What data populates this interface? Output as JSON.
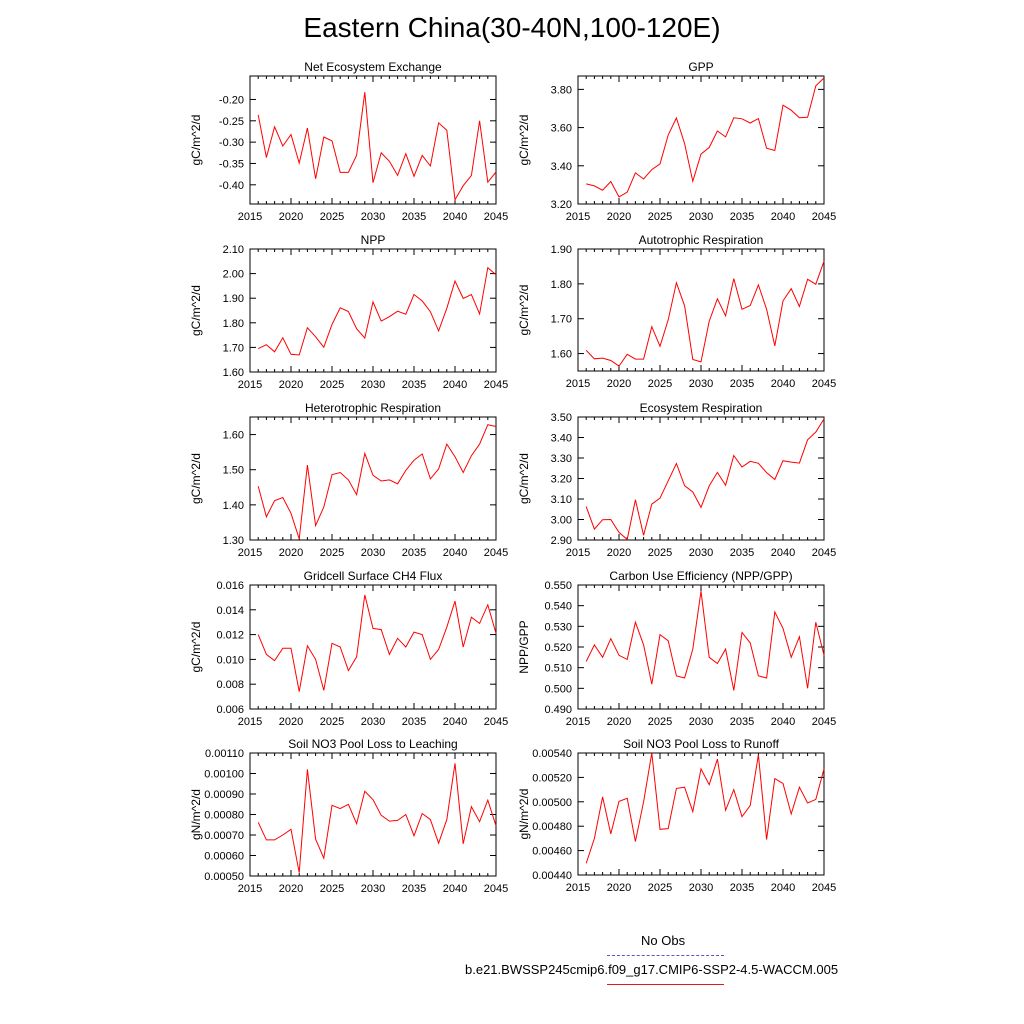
{
  "title": "Eastern China(30-40N,100-120E)",
  "legend": {
    "obs_label": "No Obs",
    "obs_color": "#5555cc",
    "model_label": "b.e21.BWSSP245cmip6.f09_g17.CMIP6-SSP2-4.5-WACCM.005",
    "model_color": "#e31a1c"
  },
  "line_color": "#ff0000",
  "chart_data": [
    {
      "type": "line",
      "title": "Net Ecosystem Exchange",
      "ylabel": "gC/m^2/d",
      "xlim": [
        2015,
        2045
      ],
      "ylim": [
        -0.445,
        -0.145
      ],
      "xticks": [
        2015,
        2020,
        2025,
        2030,
        2035,
        2040,
        2045
      ],
      "yticks": [
        -0.2,
        -0.25,
        -0.3,
        -0.35,
        -0.4
      ],
      "ytick_labels": [
        "-0.20",
        "-0.25",
        "-0.30",
        "-0.35",
        "-0.40"
      ],
      "x": [
        2016,
        2017,
        2018,
        2019,
        2020,
        2021,
        2022,
        2023,
        2024,
        2025,
        2026,
        2027,
        2028,
        2029,
        2030,
        2031,
        2032,
        2033,
        2034,
        2035,
        2036,
        2037,
        2038,
        2039,
        2040,
        2041,
        2042,
        2043,
        2044,
        2045
      ],
      "values": [
        -0.236,
        -0.336,
        -0.264,
        -0.309,
        -0.282,
        -0.349,
        -0.267,
        -0.386,
        -0.288,
        -0.297,
        -0.371,
        -0.371,
        -0.331,
        -0.183,
        -0.395,
        -0.325,
        -0.345,
        -0.378,
        -0.327,
        -0.38,
        -0.331,
        -0.356,
        -0.255,
        -0.272,
        -0.435,
        -0.402,
        -0.378,
        -0.25,
        -0.394,
        -0.37
      ]
    },
    {
      "type": "line",
      "title": "GPP",
      "ylabel": "gC/m^2/d",
      "xlim": [
        2015,
        2045
      ],
      "ylim": [
        3.2,
        3.87
      ],
      "xticks": [
        2015,
        2020,
        2025,
        2030,
        2035,
        2040,
        2045
      ],
      "yticks": [
        3.2,
        3.4,
        3.6,
        3.8
      ],
      "ytick_labels": [
        "3.20",
        "3.40",
        "3.60",
        "3.80"
      ],
      "x": [
        2016,
        2017,
        2018,
        2019,
        2020,
        2021,
        2022,
        2023,
        2024,
        2025,
        2026,
        2027,
        2028,
        2029,
        2030,
        2031,
        2032,
        2033,
        2034,
        2035,
        2036,
        2037,
        2038,
        2039,
        2040,
        2041,
        2042,
        2043,
        2044,
        2045
      ],
      "values": [
        3.305,
        3.295,
        3.272,
        3.318,
        3.237,
        3.262,
        3.363,
        3.331,
        3.38,
        3.41,
        3.561,
        3.65,
        3.516,
        3.319,
        3.461,
        3.496,
        3.582,
        3.551,
        3.651,
        3.646,
        3.624,
        3.647,
        3.492,
        3.48,
        3.717,
        3.691,
        3.651,
        3.654,
        3.818,
        3.86
      ]
    },
    {
      "type": "line",
      "title": "NPP",
      "ylabel": "gC/m^2/d",
      "xlim": [
        2015,
        2045
      ],
      "ylim": [
        1.6,
        2.1
      ],
      "xticks": [
        2015,
        2020,
        2025,
        2030,
        2035,
        2040,
        2045
      ],
      "yticks": [
        1.6,
        1.7,
        1.8,
        1.9,
        2.0,
        2.1
      ],
      "ytick_labels": [
        "1.60",
        "1.70",
        "1.80",
        "1.90",
        "2.00",
        "2.10"
      ],
      "x": [
        2016,
        2017,
        2018,
        2019,
        2020,
        2021,
        2022,
        2023,
        2024,
        2025,
        2026,
        2027,
        2028,
        2029,
        2030,
        2031,
        2032,
        2033,
        2034,
        2035,
        2036,
        2037,
        2038,
        2039,
        2040,
        2041,
        2042,
        2043,
        2044,
        2045
      ],
      "values": [
        1.695,
        1.711,
        1.682,
        1.739,
        1.672,
        1.669,
        1.78,
        1.743,
        1.701,
        1.793,
        1.861,
        1.846,
        1.776,
        1.738,
        1.885,
        1.807,
        1.825,
        1.847,
        1.835,
        1.915,
        1.889,
        1.845,
        1.767,
        1.859,
        1.97,
        1.899,
        1.915,
        1.836,
        2.024,
        1.995
      ]
    },
    {
      "type": "line",
      "title": "Autotrophic Respiration",
      "ylabel": "gC/m^2/d",
      "xlim": [
        2015,
        2045
      ],
      "ylim": [
        1.55,
        1.9
      ],
      "xticks": [
        2015,
        2020,
        2025,
        2030,
        2035,
        2040,
        2045
      ],
      "yticks": [
        1.6,
        1.7,
        1.8,
        1.9
      ],
      "ytick_labels": [
        "1.60",
        "1.70",
        "1.80",
        "1.90"
      ],
      "x": [
        2016,
        2017,
        2018,
        2019,
        2020,
        2021,
        2022,
        2023,
        2024,
        2025,
        2026,
        2027,
        2028,
        2029,
        2030,
        2031,
        2032,
        2033,
        2034,
        2035,
        2036,
        2037,
        2038,
        2039,
        2040,
        2041,
        2042,
        2043,
        2044,
        2045
      ],
      "values": [
        1.609,
        1.585,
        1.587,
        1.58,
        1.564,
        1.598,
        1.584,
        1.584,
        1.677,
        1.621,
        1.697,
        1.803,
        1.737,
        1.583,
        1.576,
        1.693,
        1.757,
        1.708,
        1.815,
        1.727,
        1.738,
        1.797,
        1.727,
        1.622,
        1.751,
        1.786,
        1.735,
        1.813,
        1.799,
        1.865
      ]
    },
    {
      "type": "line",
      "title": "Heterotrophic Respiration",
      "ylabel": "gC/m^2/d",
      "xlim": [
        2015,
        2045
      ],
      "ylim": [
        1.3,
        1.65
      ],
      "xticks": [
        2015,
        2020,
        2025,
        2030,
        2035,
        2040,
        2045
      ],
      "yticks": [
        1.3,
        1.4,
        1.5,
        1.6
      ],
      "ytick_labels": [
        "1.30",
        "1.40",
        "1.50",
        "1.60"
      ],
      "x": [
        2016,
        2017,
        2018,
        2019,
        2020,
        2021,
        2022,
        2023,
        2024,
        2025,
        2026,
        2027,
        2028,
        2029,
        2030,
        2031,
        2032,
        2033,
        2034,
        2035,
        2036,
        2037,
        2038,
        2039,
        2040,
        2041,
        2042,
        2043,
        2044,
        2045
      ],
      "values": [
        1.453,
        1.366,
        1.412,
        1.421,
        1.376,
        1.303,
        1.513,
        1.341,
        1.394,
        1.486,
        1.492,
        1.471,
        1.429,
        1.546,
        1.484,
        1.468,
        1.471,
        1.46,
        1.498,
        1.527,
        1.545,
        1.474,
        1.502,
        1.573,
        1.537,
        1.492,
        1.54,
        1.573,
        1.628,
        1.623
      ]
    },
    {
      "type": "line",
      "title": "Ecosystem Respiration",
      "ylabel": "gC/m^2/d",
      "xlim": [
        2015,
        2045
      ],
      "ylim": [
        2.9,
        3.5
      ],
      "xticks": [
        2015,
        2020,
        2025,
        2030,
        2035,
        2040,
        2045
      ],
      "yticks": [
        2.9,
        3.0,
        3.1,
        3.2,
        3.3,
        3.4,
        3.5
      ],
      "ytick_labels": [
        "2.90",
        "3.00",
        "3.10",
        "3.20",
        "3.30",
        "3.40",
        "3.50"
      ],
      "x": [
        2016,
        2017,
        2018,
        2019,
        2020,
        2021,
        2022,
        2023,
        2024,
        2025,
        2026,
        2027,
        2028,
        2029,
        2030,
        2031,
        2032,
        2033,
        2034,
        2035,
        2036,
        2037,
        2038,
        2039,
        2040,
        2041,
        2042,
        2043,
        2044,
        2045
      ],
      "values": [
        3.063,
        2.953,
        2.999,
        3.0,
        2.937,
        2.903,
        3.096,
        2.923,
        3.075,
        3.104,
        3.189,
        3.273,
        3.165,
        3.134,
        3.059,
        3.164,
        3.23,
        3.167,
        3.312,
        3.256,
        3.284,
        3.274,
        3.229,
        3.195,
        3.287,
        3.28,
        3.275,
        3.389,
        3.427,
        3.49
      ]
    },
    {
      "type": "line",
      "title": "Gridcell Surface CH4 Flux",
      "ylabel": "gC/m^2/d",
      "xlim": [
        2015,
        2045
      ],
      "ylim": [
        0.006,
        0.016
      ],
      "xticks": [
        2015,
        2020,
        2025,
        2030,
        2035,
        2040,
        2045
      ],
      "yticks": [
        0.006,
        0.008,
        0.01,
        0.012,
        0.014,
        0.016
      ],
      "ytick_labels": [
        "0.006",
        "0.008",
        "0.010",
        "0.012",
        "0.014",
        "0.016"
      ],
      "x": [
        2016,
        2017,
        2018,
        2019,
        2020,
        2021,
        2022,
        2023,
        2024,
        2025,
        2026,
        2027,
        2028,
        2029,
        2030,
        2031,
        2032,
        2033,
        2034,
        2035,
        2036,
        2037,
        2038,
        2039,
        2040,
        2041,
        2042,
        2043,
        2044,
        2045
      ],
      "values": [
        0.012,
        0.0104,
        0.0099,
        0.0109,
        0.0109,
        0.0074,
        0.0111,
        0.01,
        0.0075,
        0.0113,
        0.011,
        0.0091,
        0.0102,
        0.0152,
        0.0125,
        0.0124,
        0.0104,
        0.0117,
        0.011,
        0.0122,
        0.012,
        0.01,
        0.0108,
        0.0126,
        0.0147,
        0.011,
        0.0134,
        0.0129,
        0.0144,
        0.0121
      ]
    },
    {
      "type": "line",
      "title": "Carbon Use Efficiency (NPP/GPP)",
      "ylabel": "NPP/GPP",
      "xlim": [
        2015,
        2045
      ],
      "ylim": [
        0.49,
        0.55
      ],
      "xticks": [
        2015,
        2020,
        2025,
        2030,
        2035,
        2040,
        2045
      ],
      "yticks": [
        0.49,
        0.5,
        0.51,
        0.52,
        0.53,
        0.54,
        0.55
      ],
      "ytick_labels": [
        "0.490",
        "0.500",
        "0.510",
        "0.520",
        "0.530",
        "0.540",
        "0.550"
      ],
      "x": [
        2016,
        2017,
        2018,
        2019,
        2020,
        2021,
        2022,
        2023,
        2024,
        2025,
        2026,
        2027,
        2028,
        2029,
        2030,
        2031,
        2032,
        2033,
        2034,
        2035,
        2036,
        2037,
        2038,
        2039,
        2040,
        2041,
        2042,
        2043,
        2044,
        2045
      ],
      "values": [
        0.513,
        0.521,
        0.515,
        0.524,
        0.516,
        0.514,
        0.532,
        0.521,
        0.502,
        0.526,
        0.523,
        0.506,
        0.505,
        0.519,
        0.547,
        0.515,
        0.512,
        0.519,
        0.499,
        0.527,
        0.522,
        0.506,
        0.505,
        0.537,
        0.529,
        0.515,
        0.525,
        0.5,
        0.532,
        0.516
      ]
    },
    {
      "type": "line",
      "title": "Soil NO3 Pool Loss to Leaching",
      "ylabel": "gN/m^2/d",
      "xlim": [
        2015,
        2045
      ],
      "ylim": [
        0.0005,
        0.0011
      ],
      "xticks": [
        2015,
        2020,
        2025,
        2030,
        2035,
        2040,
        2045
      ],
      "yticks": [
        0.0005,
        0.0006,
        0.0007,
        0.0008,
        0.0009,
        0.001,
        0.0011
      ],
      "ytick_labels": [
        "0.00050",
        "0.00060",
        "0.00070",
        "0.00080",
        "0.00090",
        "0.00100",
        "0.00110"
      ],
      "x": [
        2016,
        2017,
        2018,
        2019,
        2020,
        2021,
        2022,
        2023,
        2024,
        2025,
        2026,
        2027,
        2028,
        2029,
        2030,
        2031,
        2032,
        2033,
        2034,
        2035,
        2036,
        2037,
        2038,
        2039,
        2040,
        2041,
        2042,
        2043,
        2044,
        2045
      ],
      "values": [
        0.000762,
        0.000676,
        0.000676,
        0.0007,
        0.000728,
        0.000516,
        0.00102,
        0.00068,
        0.000587,
        0.000845,
        0.000829,
        0.00085,
        0.000755,
        0.000913,
        0.000872,
        0.000796,
        0.000768,
        0.000771,
        0.0008,
        0.000696,
        0.000805,
        0.000775,
        0.00066,
        0.000775,
        0.00105,
        0.000657,
        0.000838,
        0.000765,
        0.00087,
        0.000745
      ]
    },
    {
      "type": "line",
      "title": "Soil NO3 Pool Loss to Runoff",
      "ylabel": "gN/m^2/d",
      "xlim": [
        2015,
        2045
      ],
      "ylim": [
        0.0044,
        0.0054
      ],
      "xticks": [
        2015,
        2020,
        2025,
        2030,
        2035,
        2040,
        2045
      ],
      "yticks": [
        0.0044,
        0.0046,
        0.0048,
        0.005,
        0.0052,
        0.0054
      ],
      "ytick_labels": [
        "0.00440",
        "0.00460",
        "0.00480",
        "0.00500",
        "0.00520",
        "0.00540"
      ],
      "x": [
        2016,
        2017,
        2018,
        2019,
        2020,
        2021,
        2022,
        2023,
        2024,
        2025,
        2026,
        2027,
        2028,
        2029,
        2030,
        2031,
        2032,
        2033,
        2034,
        2035,
        2036,
        2037,
        2038,
        2039,
        2040,
        2041,
        2042,
        2043,
        2044,
        2045
      ],
      "values": [
        0.004495,
        0.0047,
        0.00504,
        0.004737,
        0.005003,
        0.005029,
        0.004675,
        0.005,
        0.0054,
        0.004775,
        0.00478,
        0.00511,
        0.00512,
        0.00492,
        0.00527,
        0.00514,
        0.00535,
        0.00493,
        0.0051,
        0.004878,
        0.00497,
        0.005385,
        0.00469,
        0.00519,
        0.00515,
        0.0049,
        0.00512,
        0.00499,
        0.00502,
        0.00527
      ]
    }
  ]
}
